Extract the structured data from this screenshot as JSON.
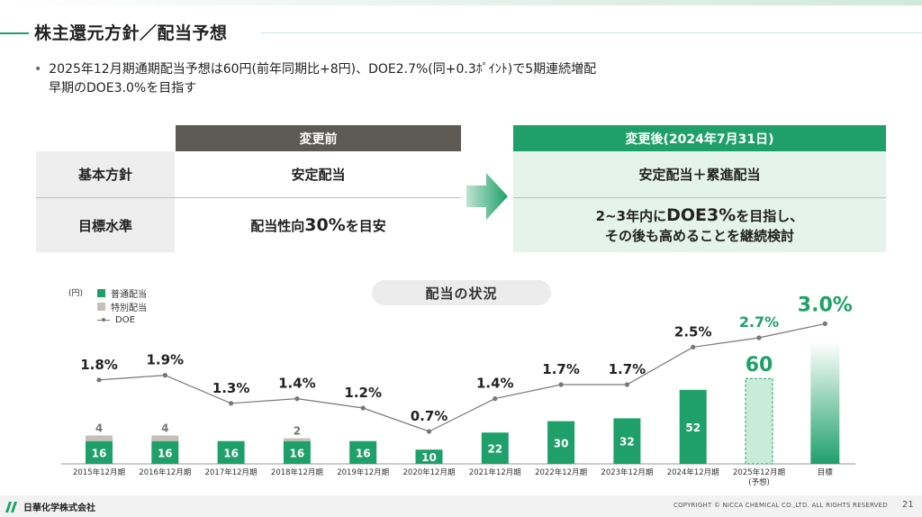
{
  "title": "株主還元方針／配当予想",
  "bullet": {
    "line1": "2025年12月期通期配当予想は60円(前年同期比+8円)、DOE2.7%(同+0.3ﾎﾟｲﾝﾄ)で5期連続増配",
    "line2": "早期のDOE3.0%を目指す"
  },
  "policy_table": {
    "header_before": "変更前",
    "header_after": "変更後(2024年7月31日)",
    "rows": [
      {
        "label": "基本方針",
        "before": "安定配当",
        "after_line1": "安定配当＋累進配当",
        "after_line2": ""
      },
      {
        "label": "目標水準",
        "before_pre": "配当性向",
        "before_big": "30%",
        "before_post": "を目安",
        "after_line1_pre": "2~3年内に",
        "after_line1_big": "DOE3%",
        "after_line1_post": "を目指し、",
        "after_line2": "その後も高めることを継続検討"
      }
    ],
    "colors": {
      "before_header": "#5c5a52",
      "after_header": "#1fa06a",
      "after_cell": "#e4f3eb",
      "label_cell": "#eeeeee"
    }
  },
  "chart_data": {
    "type": "bar",
    "title": "配当の状況",
    "unit_label": "(円)",
    "categories": [
      "2015年12月期",
      "2016年12月期",
      "2017年12月期",
      "2018年12月期",
      "2019年12月期",
      "2020年12月期",
      "2021年12月期",
      "2022年12月期",
      "2023年12月期",
      "2024年12月期",
      "2025年12月期",
      "目標"
    ],
    "category_sublabels": [
      "",
      "",
      "",
      "",
      "",
      "",
      "",
      "",
      "",
      "",
      "(予想)",
      ""
    ],
    "legend": [
      "普通配当",
      "特別配当",
      "DOE"
    ],
    "series": [
      {
        "name": "普通配当",
        "type": "bar",
        "color": "#1fa06a",
        "values": [
          16,
          16,
          16,
          16,
          16,
          10,
          22,
          30,
          32,
          52,
          60,
          null
        ]
      },
      {
        "name": "特別配当",
        "type": "bar-stacked",
        "color": "#c4c0b8",
        "values": [
          4,
          4,
          0,
          2,
          0,
          0,
          0,
          0,
          0,
          0,
          0,
          null
        ]
      },
      {
        "name": "DOE",
        "type": "line",
        "color": "#777777",
        "unit": "%",
        "values": [
          1.8,
          1.9,
          1.3,
          1.4,
          1.2,
          0.7,
          1.4,
          1.7,
          1.7,
          2.5,
          2.7,
          3.0
        ]
      }
    ],
    "bar_labels": [
      "16",
      "16",
      "16",
      "16",
      "16",
      "10",
      "22",
      "30",
      "32",
      "52",
      "60",
      ""
    ],
    "special_labels": [
      "4",
      "4",
      "",
      "2",
      "",
      "",
      "",
      "",
      "",
      "",
      "",
      ""
    ],
    "doe_labels": [
      "1.8%",
      "1.9%",
      "1.3%",
      "1.4%",
      "1.2%",
      "0.7%",
      "1.4%",
      "1.7%",
      "1.7%",
      "2.5%",
      "2.7%",
      "3.0%"
    ],
    "forecast_index": 10,
    "target_index": 11,
    "highlight_color": "#1fa06a",
    "grid": false,
    "legend_position": "top-left"
  },
  "footer": {
    "company": "日華化学株式会社",
    "copyright": "COPYRIGHT © NICCA CHEMICAL CO.,LTD. ALL RIGHTS RESERVED",
    "page": "21"
  }
}
